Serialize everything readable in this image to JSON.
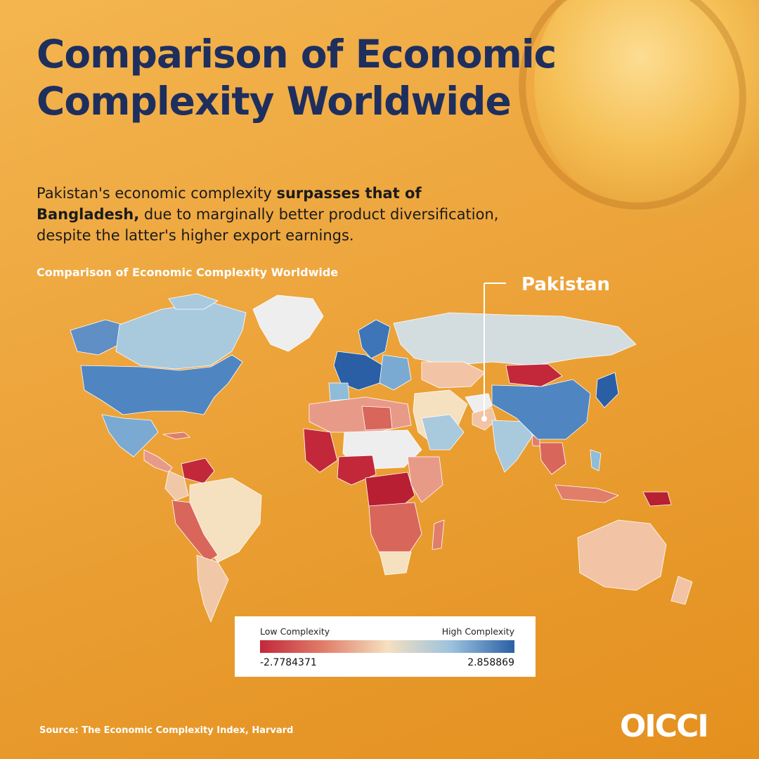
{
  "header": {
    "title": "Comparison of Economic Complexity Worldwide",
    "subtitle_part1": "Pakistan's economic complexity ",
    "subtitle_bold1": "surpasses that of Bangladesh,",
    "subtitle_part2": " due to marginally better product diversification, despite the latter's higher export earnings."
  },
  "map": {
    "title": "Comparison of Economic Complexity Worldwide",
    "callout_label": "Pakistan"
  },
  "legend": {
    "low_label": "Low Complexity",
    "high_label": "High Complexity",
    "min_value": "-2.7784371",
    "max_value": "2.858869",
    "min": -2.7784371,
    "max": 2.858869,
    "colors": [
      "#c2283a",
      "#e07e6a",
      "#f5e0bf",
      "#9cc2de",
      "#2a5fa5"
    ]
  },
  "footer": {
    "source": "Source: The Economic Complexity Index, Harvard",
    "logo_text": "OICCI"
  }
}
